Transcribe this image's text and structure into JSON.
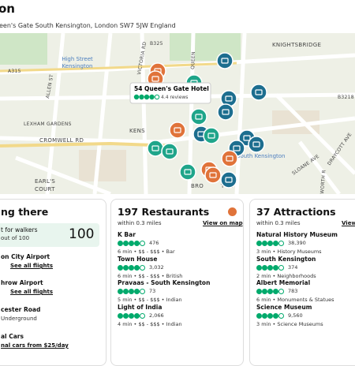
{
  "header": {
    "title": "on",
    "address": "een's Gate South Kensington, London SW7 5JW England"
  },
  "map": {
    "labels": [
      "B325",
      "VICTORIA RD",
      "QUEEN",
      "KNIGHTSBRIDGE",
      "High Street",
      "Kensington",
      "A315",
      "ALLEN ST",
      "LEXHAM GARDENS",
      "CROMWELL RD",
      "EARL'S",
      "COURT",
      "B3218",
      "KENS",
      "BRO",
      "TON",
      "South Kensington",
      "SLOANE AVE",
      "DRAYCOTT AVE",
      "WORTH R"
    ],
    "popup": {
      "name": "54 Queen's Gate Hotel",
      "reviews": "4.4 reviews"
    }
  },
  "getting_there": {
    "title": "ng there",
    "score_label": "t for walkers",
    "score_note": "out of 100",
    "score": "100",
    "items": [
      {
        "name": "on City Airport",
        "link": "See all flights"
      },
      {
        "name": "hrow Airport",
        "link": "See all flights"
      },
      {
        "name": "cester Road",
        "detail": "Underground"
      },
      {
        "name": "al Cars",
        "link": "nal cars from $25/day"
      }
    ]
  },
  "restaurants": {
    "title": "197 Restaurants",
    "distance": "within 0.3 miles",
    "link": "View on map",
    "items": [
      {
        "name": "K Bar",
        "reviews": "476",
        "details": "6 min • $$ - $$$ • Bar"
      },
      {
        "name": "Town House",
        "reviews": "3,032",
        "details": "6 min • $$ - $$$ • British"
      },
      {
        "name": "Pravaas - South Kensington",
        "reviews": "73",
        "details": "5 min • $$ - $$$ • Indian"
      },
      {
        "name": "Light of India",
        "reviews": "2,066",
        "details": "4 min • $$ - $$$ • Indian"
      }
    ]
  },
  "attractions": {
    "title": "37 Attractions",
    "distance": "within 0.3 miles",
    "link": "View",
    "items": [
      {
        "name": "Natural History Museum",
        "reviews": "38,390",
        "details": "3 min • History Museums"
      },
      {
        "name": "South Kensington",
        "reviews": "374",
        "details": "2 min • Neighborhoods"
      },
      {
        "name": "Albert Memorial",
        "reviews": "783",
        "details": "6 min • Monuments & Statues"
      },
      {
        "name": "Science Museum",
        "reviews": "9,560",
        "details": "3 min • Science Museums"
      }
    ]
  }
}
